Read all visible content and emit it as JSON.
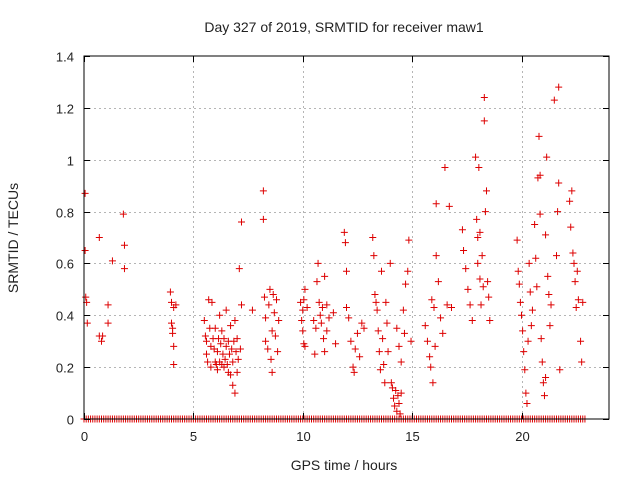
{
  "chart_data": {
    "type": "scatter",
    "title": "Day 327 of 2019, SRMTID for receiver maw1",
    "xlabel": "GPS time / hours",
    "ylabel": "SRMTID / TECUs",
    "xlim": [
      0,
      24
    ],
    "ylim": [
      0,
      1.4
    ],
    "xticks": [
      0,
      5,
      10,
      15,
      20
    ],
    "yticks": [
      0,
      0.2,
      0.4,
      0.6,
      0.8,
      1,
      1.2,
      1.4
    ],
    "xtick_labels": [
      "0",
      "5",
      "10",
      "15",
      "20"
    ],
    "ytick_labels": [
      "0",
      "0.2",
      "0.4",
      "0.6",
      "0.8",
      "1",
      "1.2",
      "1.4"
    ],
    "grid": true,
    "marker": "plus",
    "color": "#dd0000",
    "baseline_zero": {
      "x_start": 0.0,
      "x_end": 22.9,
      "step": 0.1,
      "y": 0
    },
    "series": [
      {
        "name": "SRMTID",
        "points": [
          [
            0.05,
            0.87
          ],
          [
            0.05,
            0.65
          ],
          [
            0.08,
            0.47
          ],
          [
            0.12,
            0.45
          ],
          [
            0.15,
            0.37
          ],
          [
            0.7,
            0.7
          ],
          [
            0.7,
            0.32
          ],
          [
            0.8,
            0.3
          ],
          [
            0.85,
            0.32
          ],
          [
            1.1,
            0.44
          ],
          [
            1.1,
            0.37
          ],
          [
            1.3,
            0.61
          ],
          [
            1.8,
            0.79
          ],
          [
            1.85,
            0.67
          ],
          [
            1.85,
            0.58
          ],
          [
            3.95,
            0.49
          ],
          [
            4.0,
            0.45
          ],
          [
            4.0,
            0.37
          ],
          [
            4.05,
            0.35
          ],
          [
            4.05,
            0.33
          ],
          [
            4.1,
            0.43
          ],
          [
            4.1,
            0.28
          ],
          [
            4.1,
            0.21
          ],
          [
            4.2,
            0.44
          ],
          [
            5.5,
            0.38
          ],
          [
            5.55,
            0.32
          ],
          [
            5.6,
            0.3
          ],
          [
            5.6,
            0.25
          ],
          [
            5.65,
            0.22
          ],
          [
            5.7,
            0.46
          ],
          [
            5.75,
            0.35
          ],
          [
            5.8,
            0.28
          ],
          [
            5.8,
            0.2
          ],
          [
            5.85,
            0.45
          ],
          [
            5.9,
            0.31
          ],
          [
            5.95,
            0.27
          ],
          [
            6.0,
            0.22
          ],
          [
            6.0,
            0.35
          ],
          [
            6.05,
            0.21
          ],
          [
            6.1,
            0.26
          ],
          [
            6.1,
            0.19
          ],
          [
            6.15,
            0.31
          ],
          [
            6.2,
            0.22
          ],
          [
            6.2,
            0.4
          ],
          [
            6.25,
            0.29
          ],
          [
            6.3,
            0.21
          ],
          [
            6.3,
            0.34
          ],
          [
            6.35,
            0.25
          ],
          [
            6.4,
            0.2
          ],
          [
            6.4,
            0.31
          ],
          [
            6.45,
            0.23
          ],
          [
            6.5,
            0.28
          ],
          [
            6.5,
            0.42
          ],
          [
            6.55,
            0.21
          ],
          [
            6.6,
            0.3
          ],
          [
            6.6,
            0.18
          ],
          [
            6.65,
            0.25
          ],
          [
            6.7,
            0.17
          ],
          [
            6.7,
            0.36
          ],
          [
            6.75,
            0.27
          ],
          [
            6.8,
            0.13
          ],
          [
            6.8,
            0.22
          ],
          [
            6.85,
            0.3
          ],
          [
            6.9,
            0.1
          ],
          [
            6.9,
            0.38
          ],
          [
            6.95,
            0.26
          ],
          [
            7.0,
            0.18
          ],
          [
            7.0,
            0.31
          ],
          [
            7.05,
            0.23
          ],
          [
            7.1,
            0.58
          ],
          [
            7.15,
            0.27
          ],
          [
            7.2,
            0.76
          ],
          [
            7.2,
            0.44
          ],
          [
            7.7,
            0.42
          ],
          [
            8.2,
            0.88
          ],
          [
            8.2,
            0.77
          ],
          [
            8.25,
            0.47
          ],
          [
            8.3,
            0.39
          ],
          [
            8.3,
            0.3
          ],
          [
            8.4,
            0.27
          ],
          [
            8.45,
            0.44
          ],
          [
            8.5,
            0.5
          ],
          [
            8.55,
            0.23
          ],
          [
            8.6,
            0.34
          ],
          [
            8.6,
            0.18
          ],
          [
            8.65,
            0.48
          ],
          [
            8.7,
            0.41
          ],
          [
            8.75,
            0.32
          ],
          [
            8.8,
            0.46
          ],
          [
            8.85,
            0.26
          ],
          [
            8.9,
            0.38
          ],
          [
            9.9,
            0.45
          ],
          [
            9.95,
            0.38
          ],
          [
            10.0,
            0.42
          ],
          [
            10.0,
            0.34
          ],
          [
            10.05,
            0.46
          ],
          [
            10.05,
            0.29
          ],
          [
            10.1,
            0.28
          ],
          [
            10.1,
            0.5
          ],
          [
            10.2,
            0.43
          ],
          [
            10.5,
            0.38
          ],
          [
            10.55,
            0.25
          ],
          [
            10.6,
            0.35
          ],
          [
            10.65,
            0.53
          ],
          [
            10.7,
            0.6
          ],
          [
            10.75,
            0.45
          ],
          [
            10.8,
            0.4
          ],
          [
            10.85,
            0.37
          ],
          [
            10.9,
            0.43
          ],
          [
            10.95,
            0.31
          ],
          [
            11.0,
            0.55
          ],
          [
            11.0,
            0.26
          ],
          [
            11.1,
            0.44
          ],
          [
            11.1,
            0.34
          ],
          [
            11.2,
            0.39
          ],
          [
            11.4,
            0.41
          ],
          [
            11.5,
            0.29
          ],
          [
            11.9,
            0.72
          ],
          [
            11.95,
            0.68
          ],
          [
            12.0,
            0.57
          ],
          [
            12.0,
            0.43
          ],
          [
            12.1,
            0.39
          ],
          [
            12.2,
            0.3
          ],
          [
            12.3,
            0.2
          ],
          [
            12.35,
            0.18
          ],
          [
            12.4,
            0.27
          ],
          [
            12.5,
            0.33
          ],
          [
            12.6,
            0.24
          ],
          [
            12.7,
            0.37
          ],
          [
            12.8,
            0.35
          ],
          [
            13.2,
            0.7
          ],
          [
            13.25,
            0.63
          ],
          [
            13.3,
            0.48
          ],
          [
            13.35,
            0.45
          ],
          [
            13.4,
            0.42
          ],
          [
            13.45,
            0.34
          ],
          [
            13.5,
            0.26
          ],
          [
            13.55,
            0.19
          ],
          [
            13.6,
            0.57
          ],
          [
            13.65,
            0.31
          ],
          [
            13.7,
            0.21
          ],
          [
            13.75,
            0.14
          ],
          [
            13.8,
            0.45
          ],
          [
            13.85,
            0.37
          ],
          [
            13.9,
            0.26
          ],
          [
            14.0,
            0.6
          ],
          [
            14.05,
            0.14
          ],
          [
            14.1,
            0.12
          ],
          [
            14.15,
            0.08
          ],
          [
            14.2,
            0.05
          ],
          [
            14.25,
            0.11
          ],
          [
            14.3,
            0.03
          ],
          [
            14.35,
            0.09
          ],
          [
            14.4,
            0.06
          ],
          [
            14.45,
            0.02
          ],
          [
            14.5,
            0.1
          ],
          [
            14.3,
            0.35
          ],
          [
            14.4,
            0.28
          ],
          [
            14.5,
            0.22
          ],
          [
            14.6,
            0.42
          ],
          [
            14.65,
            0.33
          ],
          [
            14.7,
            0.52
          ],
          [
            14.8,
            0.57
          ],
          [
            14.85,
            0.69
          ],
          [
            14.95,
            0.3
          ],
          [
            15.6,
            0.36
          ],
          [
            15.7,
            0.3
          ],
          [
            15.8,
            0.24
          ],
          [
            15.85,
            0.2
          ],
          [
            15.9,
            0.46
          ],
          [
            15.95,
            0.14
          ],
          [
            16.0,
            0.43
          ],
          [
            16.05,
            0.28
          ],
          [
            16.1,
            0.83
          ],
          [
            16.1,
            0.63
          ],
          [
            16.2,
            0.53
          ],
          [
            16.3,
            0.39
          ],
          [
            16.4,
            0.33
          ],
          [
            16.5,
            0.97
          ],
          [
            16.6,
            0.44
          ],
          [
            16.7,
            0.82
          ],
          [
            16.8,
            0.43
          ],
          [
            17.3,
            0.73
          ],
          [
            17.35,
            0.65
          ],
          [
            17.45,
            0.58
          ],
          [
            17.55,
            0.5
          ],
          [
            17.65,
            0.44
          ],
          [
            17.75,
            0.38
          ],
          [
            17.9,
            1.01
          ],
          [
            17.95,
            0.77
          ],
          [
            18.0,
            0.7
          ],
          [
            18.0,
            0.6
          ],
          [
            18.05,
            0.97
          ],
          [
            18.1,
            0.72
          ],
          [
            18.1,
            0.54
          ],
          [
            18.15,
            0.44
          ],
          [
            18.2,
            0.63
          ],
          [
            18.25,
            0.51
          ],
          [
            18.3,
            1.24
          ],
          [
            18.3,
            1.15
          ],
          [
            18.35,
            0.8
          ],
          [
            18.4,
            0.88
          ],
          [
            18.45,
            0.53
          ],
          [
            18.5,
            0.47
          ],
          [
            18.55,
            0.38
          ],
          [
            19.8,
            0.69
          ],
          [
            19.85,
            0.57
          ],
          [
            19.9,
            0.52
          ],
          [
            19.95,
            0.45
          ],
          [
            20.0,
            0.4
          ],
          [
            20.05,
            0.34
          ],
          [
            20.1,
            0.26
          ],
          [
            20.15,
            0.19
          ],
          [
            20.2,
            0.1
          ],
          [
            20.25,
            0.06
          ],
          [
            20.3,
            0.3
          ],
          [
            20.35,
            0.6
          ],
          [
            20.4,
            0.49
          ],
          [
            20.45,
            0.36
          ],
          [
            20.5,
            0.42
          ],
          [
            20.6,
            0.75
          ],
          [
            20.65,
            0.62
          ],
          [
            20.7,
            0.51
          ],
          [
            20.75,
            0.93
          ],
          [
            20.8,
            1.09
          ],
          [
            20.85,
            0.94
          ],
          [
            20.85,
            0.79
          ],
          [
            20.9,
            0.31
          ],
          [
            20.95,
            0.22
          ],
          [
            21.0,
            0.14
          ],
          [
            21.05,
            0.09
          ],
          [
            21.1,
            0.16
          ],
          [
            21.1,
            0.71
          ],
          [
            21.15,
            1.01
          ],
          [
            21.2,
            0.55
          ],
          [
            21.25,
            0.48
          ],
          [
            21.3,
            0.36
          ],
          [
            21.35,
            0.44
          ],
          [
            21.5,
            1.23
          ],
          [
            21.6,
            0.63
          ],
          [
            21.65,
            0.8
          ],
          [
            21.7,
            0.91
          ],
          [
            21.7,
            1.28
          ],
          [
            21.75,
            0.19
          ],
          [
            22.2,
            0.84
          ],
          [
            22.25,
            0.74
          ],
          [
            22.3,
            0.88
          ],
          [
            22.35,
            0.64
          ],
          [
            22.4,
            0.6
          ],
          [
            22.45,
            0.53
          ],
          [
            22.5,
            0.43
          ],
          [
            22.55,
            0.57
          ],
          [
            22.6,
            0.46
          ],
          [
            22.7,
            0.3
          ],
          [
            22.75,
            0.22
          ],
          [
            22.8,
            0.45
          ]
        ]
      }
    ]
  }
}
